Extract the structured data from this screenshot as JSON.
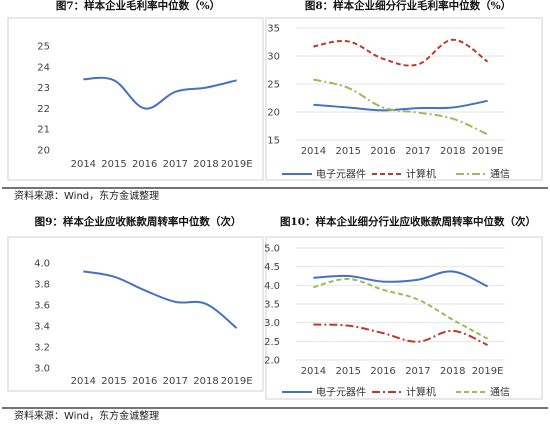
{
  "sources": [
    "资料来源：Wind，东方金诚整理",
    "资料来源：Wind，东方金诚整理"
  ],
  "chart_data": [
    {
      "type": "line",
      "title": "图7：样本企业毛利率中位数（%）",
      "categories": [
        "2014",
        "2015",
        "2016",
        "2017",
        "2018",
        "2019E"
      ],
      "yticks": [
        "20",
        "21",
        "22",
        "23",
        "24",
        "25"
      ],
      "ylim": [
        20,
        25
      ],
      "grid": false,
      "series": [
        {
          "values": [
            23.4,
            23.35,
            22.0,
            22.8,
            23.0,
            23.35
          ],
          "color": "#4472C4",
          "dash": ""
        }
      ]
    },
    {
      "type": "line",
      "title": "图8：样本企业细分行业毛利率中位数（%）",
      "categories": [
        "2014",
        "2015",
        "2016",
        "2017",
        "2018",
        "2019E"
      ],
      "yticks": [
        "15",
        "20",
        "25",
        "30",
        "35"
      ],
      "ylim": [
        15,
        35
      ],
      "grid": true,
      "legend_position": "bottom",
      "series": [
        {
          "name": "电子元器件",
          "values": [
            21.3,
            20.8,
            20.3,
            20.7,
            20.8,
            22.0
          ],
          "color": "#4472C4",
          "dash": ""
        },
        {
          "name": "计算机",
          "values": [
            31.7,
            32.6,
            29.5,
            28.5,
            32.9,
            29.0
          ],
          "color": "#C0392B",
          "dash": "5,3"
        },
        {
          "name": "通信",
          "values": [
            25.8,
            24.3,
            20.8,
            19.9,
            18.8,
            16.0
          ],
          "color": "#9BBB59",
          "dash": "8,3,2,3"
        }
      ]
    },
    {
      "type": "line",
      "title": "图9：样本企业应收账款周转率中位数（次）",
      "categories": [
        "2014",
        "2015",
        "2016",
        "2017",
        "2018",
        "2019E"
      ],
      "yticks": [
        "3.0",
        "3.2",
        "3.4",
        "3.6",
        "3.8",
        "4.0"
      ],
      "ylim": [
        3.0,
        4.0
      ],
      "grid": false,
      "series": [
        {
          "values": [
            3.92,
            3.87,
            3.74,
            3.63,
            3.61,
            3.38
          ],
          "color": "#4472C4",
          "dash": ""
        }
      ]
    },
    {
      "type": "line",
      "title": "图10：样本企业细分行业应收账款周转率中位数（次）",
      "categories": [
        "2014",
        "2015",
        "2016",
        "2017",
        "2018",
        "2019E"
      ],
      "yticks": [
        "2.0",
        "2.5",
        "3.0",
        "3.5",
        "4.0",
        "4.5",
        "5.0"
      ],
      "ylim": [
        2.0,
        5.0
      ],
      "grid": true,
      "legend_position": "bottom",
      "series": [
        {
          "name": "电子元器件",
          "values": [
            4.2,
            4.25,
            4.1,
            4.15,
            4.37,
            3.97
          ],
          "color": "#4472C4",
          "dash": ""
        },
        {
          "name": "计算机",
          "values": [
            2.95,
            2.92,
            2.72,
            2.49,
            2.78,
            2.4
          ],
          "color": "#C0392B",
          "dash": "8,3,2,3"
        },
        {
          "name": "通信",
          "values": [
            3.95,
            4.17,
            3.88,
            3.62,
            3.08,
            2.57
          ],
          "color": "#9BBB59",
          "dash": "5,3"
        }
      ]
    }
  ]
}
